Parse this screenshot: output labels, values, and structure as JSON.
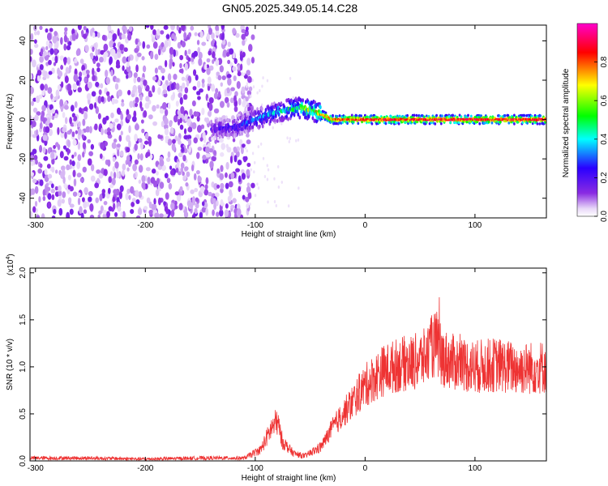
{
  "title": "GN05.2025.349.05.14.C28",
  "chart_data": [
    {
      "type": "heatmap",
      "xlabel": "Height of straight line (km)",
      "ylabel": "Frequency (Hz)",
      "xlim": [
        -305,
        165
      ],
      "ylim": [
        -50,
        48
      ],
      "x_ticks": [
        -300,
        -200,
        -100,
        0,
        100
      ],
      "y_ticks": [
        -40,
        -20,
        0,
        20,
        40
      ],
      "colorbar": {
        "label": "Normalized spectral amplitude",
        "range": [
          0,
          1
        ],
        "ticks": [
          "0.0",
          "0.2",
          "0.4",
          "0.6",
          "0.8"
        ],
        "colormap": [
          "#ffffff",
          "#8a2be2",
          "#0000ff",
          "#00ffff",
          "#00ff00",
          "#ffff00",
          "#ff0000",
          "#ff00ff"
        ]
      },
      "noise_region_x": [
        -305,
        -110
      ],
      "ridge": {
        "x": [
          -140,
          -120,
          -100,
          -80,
          -60,
          -45,
          -30,
          -15,
          0,
          50,
          100,
          165
        ],
        "freq": [
          -5,
          -4,
          0,
          4,
          6,
          4,
          0,
          0,
          0,
          0,
          0,
          0
        ],
        "peak_amplitude": [
          0.2,
          0.25,
          0.35,
          0.45,
          0.6,
          0.75,
          0.85,
          0.9,
          0.95,
          0.95,
          0.95,
          0.95
        ]
      }
    },
    {
      "type": "line",
      "xlabel": "Height of straight line (km)",
      "ylabel": "SNR (10 * v/v)",
      "y_multiplier": "(x10",
      "y_multiplier_exp": "4",
      "xlim": [
        -305,
        165
      ],
      "ylim": [
        0,
        2.05
      ],
      "x_ticks": [
        -300,
        -200,
        -100,
        0,
        100
      ],
      "y_ticks": [
        "0.0",
        "0.5",
        "1.0",
        "1.5",
        "2.0"
      ],
      "line_color": "#ee3333",
      "series": [
        {
          "x": [
            -305,
            -250,
            -200,
            -150,
            -110,
            -95,
            -85,
            -80,
            -75,
            -65,
            -55,
            -40,
            -30,
            -20,
            -10,
            0,
            15,
            30,
            45,
            55,
            60,
            65,
            70,
            80,
            100,
            120,
            140,
            165
          ],
          "y": [
            0.03,
            0.03,
            0.02,
            0.03,
            0.03,
            0.12,
            0.35,
            0.42,
            0.2,
            0.08,
            0.05,
            0.15,
            0.35,
            0.5,
            0.65,
            0.8,
            0.95,
            1.02,
            1.05,
            1.1,
            1.2,
            1.25,
            1.1,
            1.05,
            1.0,
            1.02,
            0.98,
            1.0
          ]
        }
      ]
    }
  ]
}
